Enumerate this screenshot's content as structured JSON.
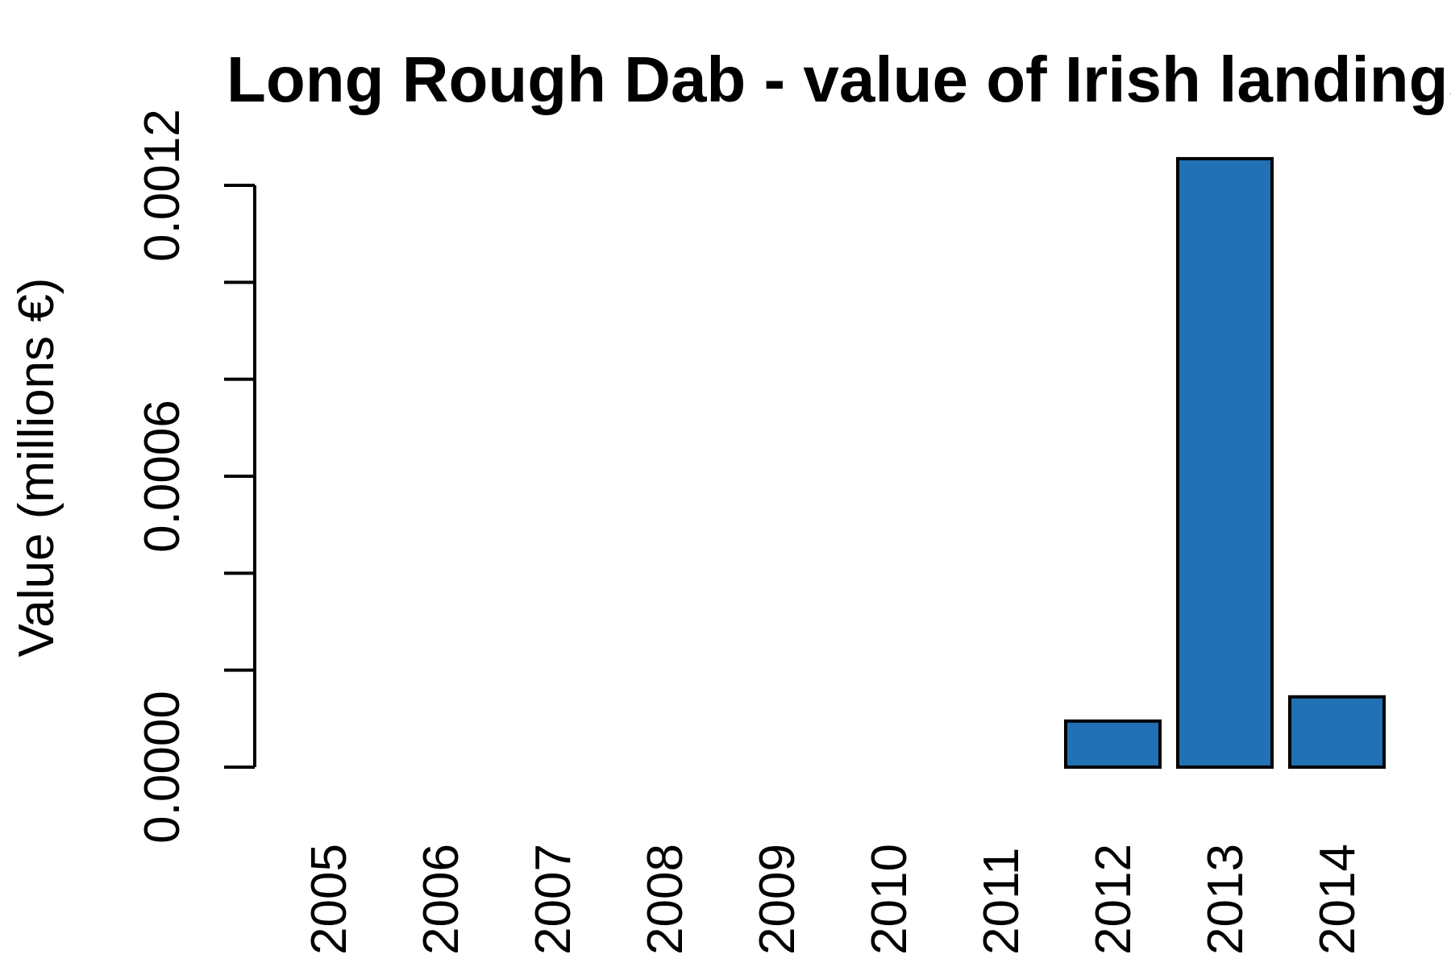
{
  "chart_data": {
    "type": "bar",
    "title": "Long Rough Dab - value of Irish landings",
    "xlabel": "",
    "ylabel": "Value (millions €)",
    "categories": [
      "2005",
      "2006",
      "2007",
      "2008",
      "2009",
      "2010",
      "2011",
      "2012",
      "2013",
      "2014"
    ],
    "values": [
      0,
      0,
      0,
      0,
      0,
      0,
      0,
      9.5e-05,
      0.001255,
      0.000145
    ],
    "ylim": [
      0,
      0.0012
    ],
    "yticks": [
      0,
      0.0002,
      0.0004,
      0.0006,
      0.0008,
      0.001,
      0.0012
    ],
    "ytick_labels": [
      "0.0000",
      "",
      "",
      "0.0006",
      "",
      "",
      "0.0012"
    ],
    "bar_color": "#2271b5",
    "bar_edge_color": "#000000",
    "grid": false,
    "legend": "none"
  }
}
